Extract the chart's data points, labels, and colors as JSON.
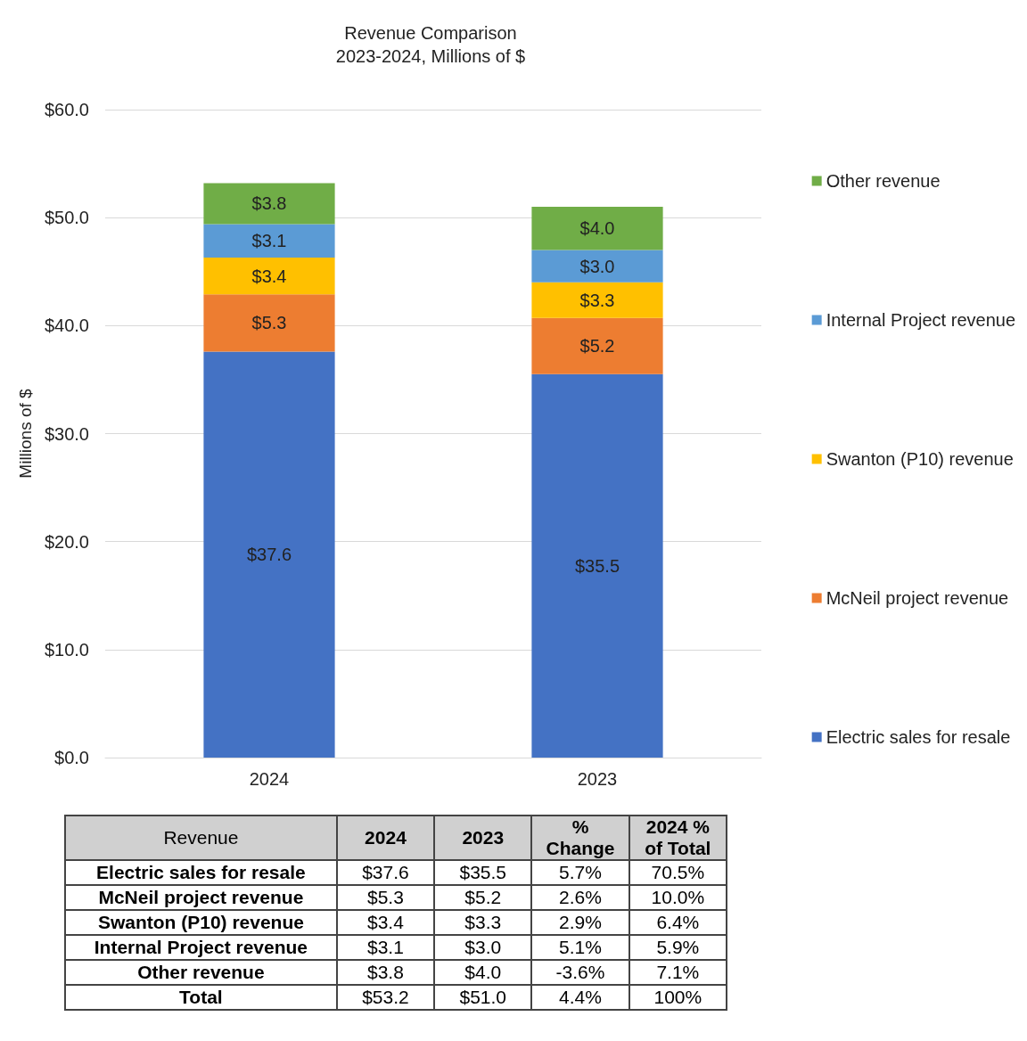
{
  "chart_data": {
    "type": "bar",
    "title": "Revenue Comparison",
    "subtitle": "2023-2024, Millions of $",
    "ylabel": "Millions of $",
    "categories": [
      "2024",
      "2023"
    ],
    "stacked": true,
    "ylim": [
      0,
      60
    ],
    "yticks": [
      {
        "value": 0,
        "label": "$0.0"
      },
      {
        "value": 10,
        "label": "$10.0"
      },
      {
        "value": 20,
        "label": "$20.0"
      },
      {
        "value": 30,
        "label": "$30.0"
      },
      {
        "value": 40,
        "label": "$40.0"
      },
      {
        "value": 50,
        "label": "$50.0"
      },
      {
        "value": 60,
        "label": "$60.0"
      }
    ],
    "grid": "y",
    "legend": "right",
    "series": [
      {
        "name": "Electric sales for resale",
        "color": "#4472c4",
        "values": [
          37.6,
          35.5
        ],
        "value_labels": [
          "$37.6",
          "$35.5"
        ]
      },
      {
        "name": "McNeil project revenue",
        "color": "#ed7d31",
        "values": [
          5.3,
          5.2
        ],
        "value_labels": [
          "$5.3",
          "$5.2"
        ]
      },
      {
        "name": "Swanton (P10) revenue",
        "color": "#ffc000",
        "values": [
          3.4,
          3.3
        ],
        "value_labels": [
          "$3.4",
          "$3.3"
        ]
      },
      {
        "name": "Internal Project revenue",
        "color": "#5b9bd5",
        "values": [
          3.1,
          3.0
        ],
        "value_labels": [
          "$3.1",
          "$3.0"
        ]
      },
      {
        "name": "Other revenue",
        "color": "#70ad47",
        "values": [
          3.8,
          4.0
        ],
        "value_labels": [
          "$3.8",
          "$4.0"
        ]
      }
    ],
    "annotations": [
      "Revenue",
      "% Change",
      "2024 % of Total",
      "Total",
      "$53.2",
      "$51.0",
      "5.7%",
      "70.5%",
      "2.6%",
      "10.0%",
      "2.9%",
      "6.4%",
      "5.1%",
      "5.9%",
      "-3.6%",
      "7.1%",
      "4.4%",
      "100%"
    ]
  }
}
